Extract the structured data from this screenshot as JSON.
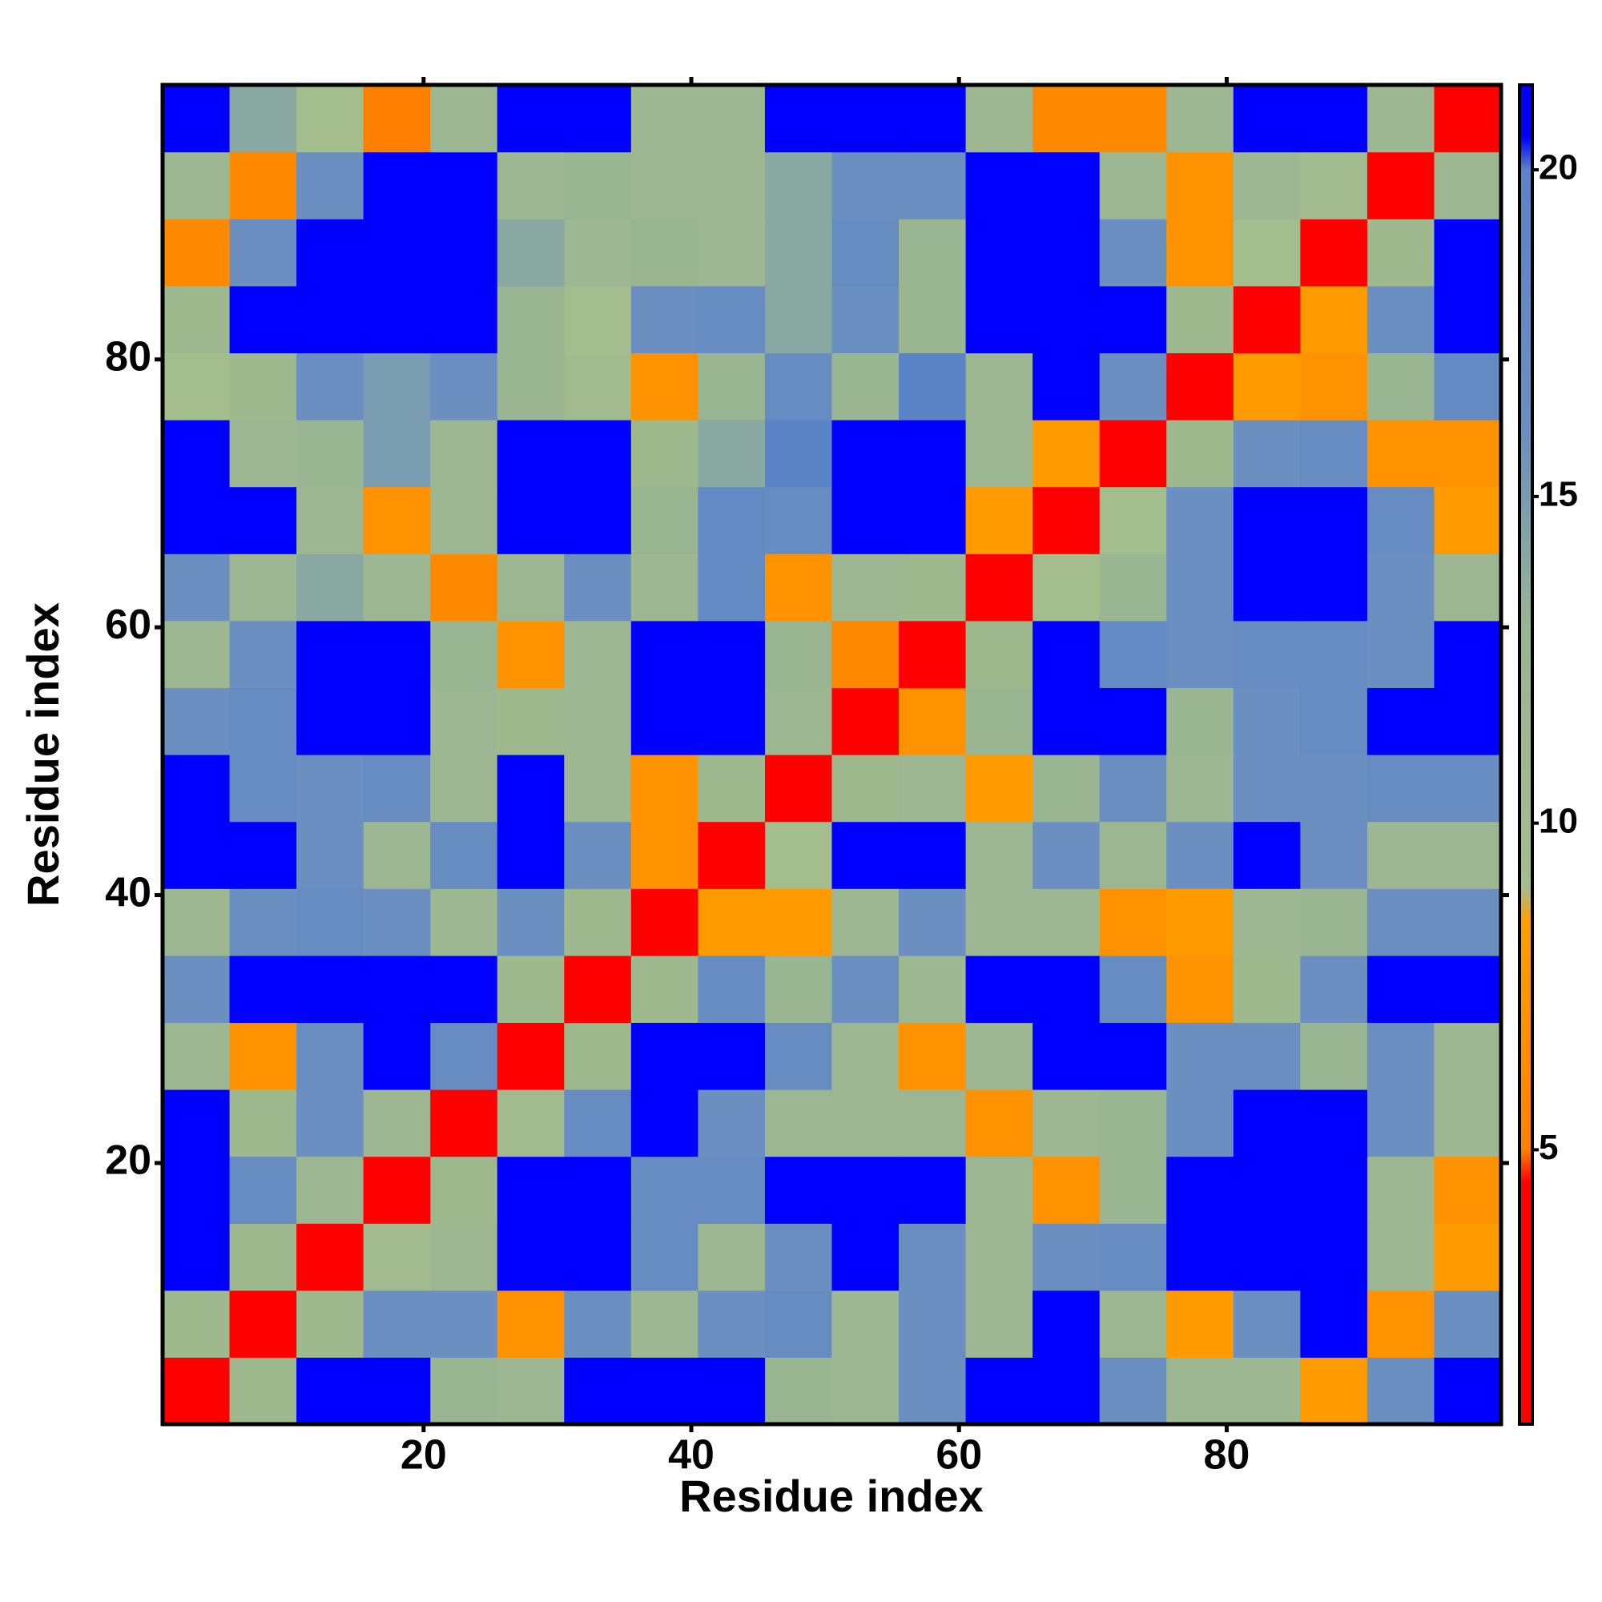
{
  "chart_data": {
    "type": "heatmap",
    "xlabel": "Residue index",
    "ylabel": "Residue index",
    "x": [
      3,
      8,
      13,
      18,
      23,
      28,
      33,
      38,
      43,
      48,
      53,
      58,
      63,
      68,
      73,
      78,
      83,
      88,
      93,
      98
    ],
    "y": [
      3,
      8,
      13,
      18,
      23,
      28,
      33,
      38,
      43,
      48,
      53,
      58,
      63,
      68,
      73,
      78,
      83,
      88,
      93,
      98
    ],
    "z": [
      [
        3,
        11,
        21,
        21,
        13,
        12,
        21,
        21,
        21,
        13,
        12,
        16,
        21,
        21,
        16,
        12,
        12,
        8,
        16,
        21
      ],
      [
        11,
        3,
        11,
        16,
        16,
        7,
        16,
        12,
        16,
        17,
        12,
        16,
        12,
        21,
        12,
        8,
        16,
        21,
        7,
        16
      ],
      [
        21,
        11,
        3,
        10,
        12,
        21,
        21,
        17,
        12,
        16,
        21,
        16,
        12,
        16,
        17,
        21,
        21,
        21,
        12,
        8
      ],
      [
        21,
        17,
        12,
        3,
        11,
        21,
        21,
        17,
        17,
        21,
        21,
        21,
        12,
        7,
        13,
        21,
        21,
        21,
        12,
        7
      ],
      [
        21,
        11,
        16,
        12,
        3,
        10,
        17,
        21,
        16,
        12,
        12,
        12,
        7,
        12,
        13,
        16,
        21,
        21,
        16,
        12
      ],
      [
        12,
        7,
        16,
        21,
        17,
        3,
        11,
        21,
        21,
        17,
        12,
        7,
        12,
        21,
        21,
        16,
        16,
        13,
        16,
        12
      ],
      [
        16,
        21,
        21,
        21,
        21,
        11,
        3,
        11,
        17,
        13,
        16,
        12,
        21,
        21,
        17,
        7,
        11,
        16,
        21,
        21
      ],
      [
        12,
        16,
        17,
        16,
        12,
        16,
        11,
        3,
        8,
        8,
        12,
        16,
        12,
        12,
        7,
        8,
        12,
        13,
        16,
        16
      ],
      [
        21,
        21,
        16,
        12,
        17,
        21,
        16,
        7,
        3,
        9,
        21,
        21,
        12,
        16,
        12,
        16,
        21,
        16,
        12,
        12
      ],
      [
        21,
        17,
        16,
        17,
        12,
        21,
        12,
        7,
        11,
        3,
        11,
        12,
        8,
        13,
        16,
        12,
        16,
        16,
        17,
        17
      ],
      [
        16,
        17,
        21,
        21,
        12,
        11,
        12,
        21,
        21,
        12,
        3,
        7,
        13,
        21,
        21,
        13,
        16,
        17,
        21,
        21
      ],
      [
        12,
        16,
        21,
        21,
        13,
        7,
        12,
        21,
        21,
        13,
        6,
        3,
        11,
        21,
        18,
        16,
        17,
        17,
        16,
        21
      ],
      [
        16,
        12,
        14,
        12,
        6,
        12,
        16,
        12,
        18,
        7,
        12,
        11,
        3,
        9,
        13,
        16,
        21,
        21,
        16,
        12
      ],
      [
        21,
        21,
        12,
        7,
        12,
        21,
        21,
        13,
        18,
        17,
        21,
        21,
        8,
        3,
        9,
        16,
        21,
        21,
        17,
        8
      ],
      [
        21,
        12,
        13,
        15,
        12,
        21,
        21,
        11,
        14,
        20,
        21,
        21,
        12,
        8,
        3,
        11,
        16,
        17,
        7,
        7
      ],
      [
        9,
        11,
        16,
        15,
        16,
        13,
        10,
        7,
        13,
        17,
        13,
        20,
        12,
        21,
        16,
        3,
        8,
        7,
        13,
        18
      ],
      [
        11,
        21,
        21,
        21,
        21,
        13,
        9,
        16,
        17,
        14,
        16,
        13,
        21,
        21,
        21,
        11,
        3,
        8,
        16,
        21
      ],
      [
        6,
        16,
        21,
        21,
        21,
        14,
        12,
        13,
        12,
        14,
        17,
        13,
        21,
        21,
        16,
        7,
        9,
        3,
        11,
        21
      ],
      [
        12,
        6,
        16,
        21,
        21,
        12,
        13,
        12,
        12,
        14,
        16,
        16,
        21,
        21,
        12,
        7,
        12,
        10,
        3,
        12
      ],
      [
        21,
        14,
        9,
        5,
        12,
        21,
        21,
        12,
        12,
        21,
        21,
        21,
        12,
        6,
        6,
        12,
        21,
        21,
        12,
        3
      ]
    ],
    "xlim": [
      0.5,
      100.5
    ],
    "ylim": [
      0.5,
      100.5
    ],
    "xticks": [
      20,
      40,
      60,
      80
    ],
    "yticks": [
      20,
      40,
      60,
      80
    ],
    "colorbar": {
      "zlim": [
        0.8,
        21.3
      ],
      "ticks": [
        5,
        10,
        15,
        20
      ],
      "stops": [
        [
          0.8,
          "#ff0000"
        ],
        [
          4.5,
          "#ff0000"
        ],
        [
          5,
          "#ff8000"
        ],
        [
          8.5,
          "#ffa000"
        ],
        [
          9,
          "#a4bd8c"
        ],
        [
          13,
          "#99b592"
        ],
        [
          16,
          "#6a8fc0"
        ],
        [
          20,
          "#5b84c6"
        ],
        [
          20.5,
          "#0000ff"
        ],
        [
          21.3,
          "#0000ff"
        ]
      ]
    }
  }
}
